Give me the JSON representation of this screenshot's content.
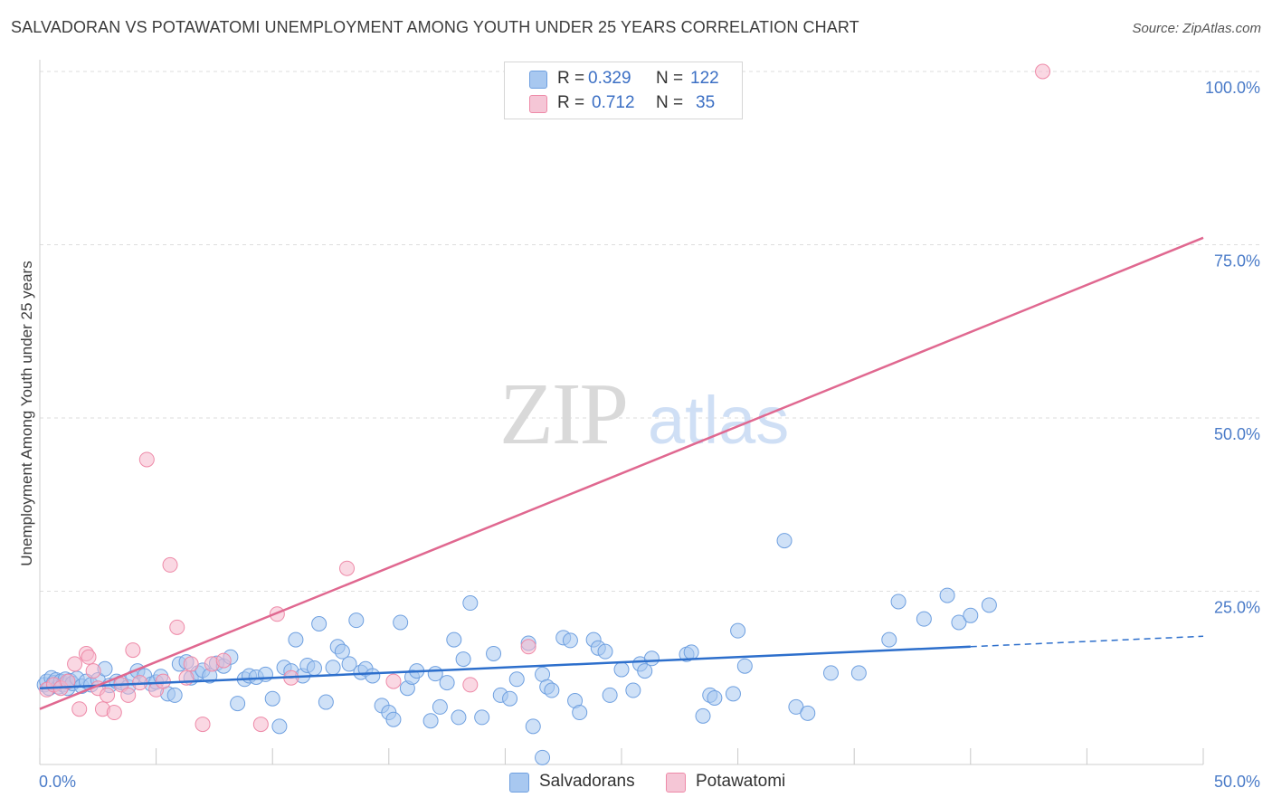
{
  "title": "SALVADORAN VS POTAWATOMI UNEMPLOYMENT AMONG YOUTH UNDER 25 YEARS CORRELATION CHART",
  "source": "Source: ZipAtlas.com",
  "watermark": {
    "zip": "ZIP",
    "atlas": "atlas"
  },
  "legend": {
    "rows": [
      {
        "r_label": "R =",
        "r_value": "0.329",
        "n_label": "N =",
        "n_value": "122",
        "color": "#a8c8f0"
      },
      {
        "r_label": "R =",
        "r_value": "0.712",
        "n_label": "N =",
        "n_value": "35",
        "color": "#f5b8cc"
      }
    ]
  },
  "bottom_legend": [
    {
      "label": "Salvadorans",
      "color": "#a8c8f0"
    },
    {
      "label": "Potawatomi",
      "color": "#f5b8cc"
    }
  ],
  "chart_data": {
    "type": "scatter",
    "title": "SALVADORAN VS POTAWATOMI UNEMPLOYMENT AMONG YOUTH UNDER 25 YEARS CORRELATION CHART",
    "xlabel": "",
    "ylabel": "Unemployment Among Youth under 25 years",
    "xlim": [
      0,
      50
    ],
    "ylim": [
      0,
      100
    ],
    "x_tick_labels": [
      "0.0%",
      "50.0%"
    ],
    "y_ticks": [
      25,
      50,
      75,
      100
    ],
    "y_tick_labels": [
      "25.0%",
      "50.0%",
      "75.0%",
      "100.0%"
    ],
    "grid": true,
    "series": [
      {
        "name": "Salvadorans",
        "color": "#6fa0e0",
        "fill": "#a8c8f0",
        "trend": {
          "x0": 0,
          "y0": 11.0,
          "x1": 40,
          "y1": 17.0,
          "dash_to_x": 50,
          "dash_to_y": 18.5,
          "color": "#2d6fcc"
        },
        "points": [
          [
            0.2,
            11.5
          ],
          [
            0.3,
            12.0
          ],
          [
            0.4,
            11.0
          ],
          [
            0.5,
            12.5
          ],
          [
            0.6,
            11.8
          ],
          [
            0.7,
            12.2
          ],
          [
            0.8,
            11.2
          ],
          [
            0.9,
            12.0
          ],
          [
            1.0,
            11.5
          ],
          [
            1.1,
            12.3
          ],
          [
            1.2,
            11.0
          ],
          [
            1.3,
            12.1
          ],
          [
            1.4,
            11.7
          ],
          [
            1.6,
            12.4
          ],
          [
            1.8,
            11.3
          ],
          [
            2.0,
            12.0
          ],
          [
            2.2,
            11.5
          ],
          [
            2.5,
            12.2
          ],
          [
            2.8,
            13.8
          ],
          [
            3.0,
            11.4
          ],
          [
            3.3,
            12.0
          ],
          [
            3.5,
            11.8
          ],
          [
            3.8,
            11.2
          ],
          [
            4.0,
            12.5
          ],
          [
            4.2,
            13.5
          ],
          [
            4.5,
            12.8
          ],
          [
            4.8,
            11.6
          ],
          [
            5.0,
            11.9
          ],
          [
            5.2,
            12.7
          ],
          [
            5.5,
            10.2
          ],
          [
            5.8,
            10.0
          ],
          [
            6.0,
            14.5
          ],
          [
            6.3,
            14.8
          ],
          [
            6.5,
            12.5
          ],
          [
            6.8,
            13.2
          ],
          [
            7.0,
            13.6
          ],
          [
            7.3,
            12.8
          ],
          [
            7.6,
            14.6
          ],
          [
            7.9,
            14.2
          ],
          [
            8.2,
            15.5
          ],
          [
            8.5,
            8.8
          ],
          [
            8.8,
            12.3
          ],
          [
            9.0,
            12.8
          ],
          [
            9.3,
            12.6
          ],
          [
            9.7,
            13.0
          ],
          [
            10.0,
            9.5
          ],
          [
            10.3,
            5.5
          ],
          [
            10.5,
            14.0
          ],
          [
            10.8,
            13.5
          ],
          [
            11.0,
            18.0
          ],
          [
            11.3,
            12.8
          ],
          [
            11.5,
            14.3
          ],
          [
            11.8,
            13.9
          ],
          [
            12.0,
            20.3
          ],
          [
            12.3,
            9.0
          ],
          [
            12.6,
            14.0
          ],
          [
            12.8,
            17.0
          ],
          [
            13.0,
            16.3
          ],
          [
            13.3,
            14.5
          ],
          [
            13.6,
            20.8
          ],
          [
            13.8,
            13.3
          ],
          [
            14.0,
            13.8
          ],
          [
            14.3,
            12.8
          ],
          [
            14.7,
            8.5
          ],
          [
            15.0,
            7.5
          ],
          [
            15.2,
            6.5
          ],
          [
            15.5,
            20.5
          ],
          [
            15.8,
            11.0
          ],
          [
            16.0,
            12.6
          ],
          [
            16.2,
            13.5
          ],
          [
            16.8,
            6.3
          ],
          [
            17.0,
            13.1
          ],
          [
            17.2,
            8.3
          ],
          [
            17.5,
            11.8
          ],
          [
            17.8,
            18.0
          ],
          [
            18.0,
            6.8
          ],
          [
            18.2,
            15.2
          ],
          [
            18.5,
            23.3
          ],
          [
            19.0,
            6.8
          ],
          [
            19.5,
            16.0
          ],
          [
            19.8,
            10.0
          ],
          [
            20.2,
            9.5
          ],
          [
            20.5,
            12.3
          ],
          [
            21.0,
            17.5
          ],
          [
            21.2,
            5.5
          ],
          [
            21.6,
            13.0
          ],
          [
            21.8,
            11.2
          ],
          [
            22.0,
            10.7
          ],
          [
            22.5,
            18.3
          ],
          [
            22.8,
            17.9
          ],
          [
            23.0,
            9.2
          ],
          [
            23.2,
            7.5
          ],
          [
            23.8,
            18.0
          ],
          [
            24.0,
            16.8
          ],
          [
            24.3,
            16.3
          ],
          [
            24.5,
            10.0
          ],
          [
            25.0,
            13.7
          ],
          [
            25.5,
            10.7
          ],
          [
            25.8,
            14.5
          ],
          [
            26.0,
            13.5
          ],
          [
            26.3,
            15.3
          ],
          [
            27.8,
            15.9
          ],
          [
            28.0,
            16.2
          ],
          [
            28.5,
            7.0
          ],
          [
            28.8,
            10.0
          ],
          [
            29.0,
            9.6
          ],
          [
            29.8,
            10.2
          ],
          [
            30.0,
            19.3
          ],
          [
            30.3,
            14.2
          ],
          [
            32.0,
            32.3
          ],
          [
            32.5,
            8.3
          ],
          [
            33.0,
            7.4
          ],
          [
            34.0,
            13.2
          ],
          [
            35.2,
            13.2
          ],
          [
            36.5,
            18.0
          ],
          [
            36.9,
            23.5
          ],
          [
            38.0,
            21.0
          ],
          [
            39.0,
            24.4
          ],
          [
            39.5,
            20.5
          ],
          [
            40.0,
            21.5
          ],
          [
            40.8,
            23.0
          ],
          [
            21.6,
            1.0
          ]
        ]
      },
      {
        "name": "Potawatomi",
        "color": "#ee8aa8",
        "fill": "#f5b8cc",
        "trend": {
          "x0": 0,
          "y0": 8.0,
          "x1": 50,
          "y1": 76.0,
          "color": "#e06890"
        },
        "points": [
          [
            0.3,
            10.8
          ],
          [
            0.6,
            11.5
          ],
          [
            0.9,
            11.0
          ],
          [
            1.2,
            12.0
          ],
          [
            1.5,
            14.5
          ],
          [
            1.7,
            8.0
          ],
          [
            2.0,
            16.0
          ],
          [
            2.1,
            15.5
          ],
          [
            2.3,
            13.5
          ],
          [
            2.5,
            11.0
          ],
          [
            2.7,
            8.0
          ],
          [
            2.9,
            10.0
          ],
          [
            3.2,
            7.5
          ],
          [
            3.5,
            11.5
          ],
          [
            3.8,
            10.0
          ],
          [
            4.0,
            16.5
          ],
          [
            4.3,
            11.8
          ],
          [
            4.6,
            44.0
          ],
          [
            5.0,
            10.8
          ],
          [
            5.3,
            12.0
          ],
          [
            5.6,
            28.8
          ],
          [
            5.9,
            19.8
          ],
          [
            6.3,
            12.5
          ],
          [
            6.5,
            14.5
          ],
          [
            7.0,
            5.8
          ],
          [
            7.4,
            14.5
          ],
          [
            7.9,
            15.0
          ],
          [
            9.5,
            5.8
          ],
          [
            10.2,
            21.7
          ],
          [
            10.8,
            12.5
          ],
          [
            13.2,
            28.3
          ],
          [
            15.2,
            12.0
          ],
          [
            18.5,
            11.5
          ],
          [
            21.0,
            17.0
          ],
          [
            43.1,
            100.0
          ]
        ]
      }
    ]
  }
}
